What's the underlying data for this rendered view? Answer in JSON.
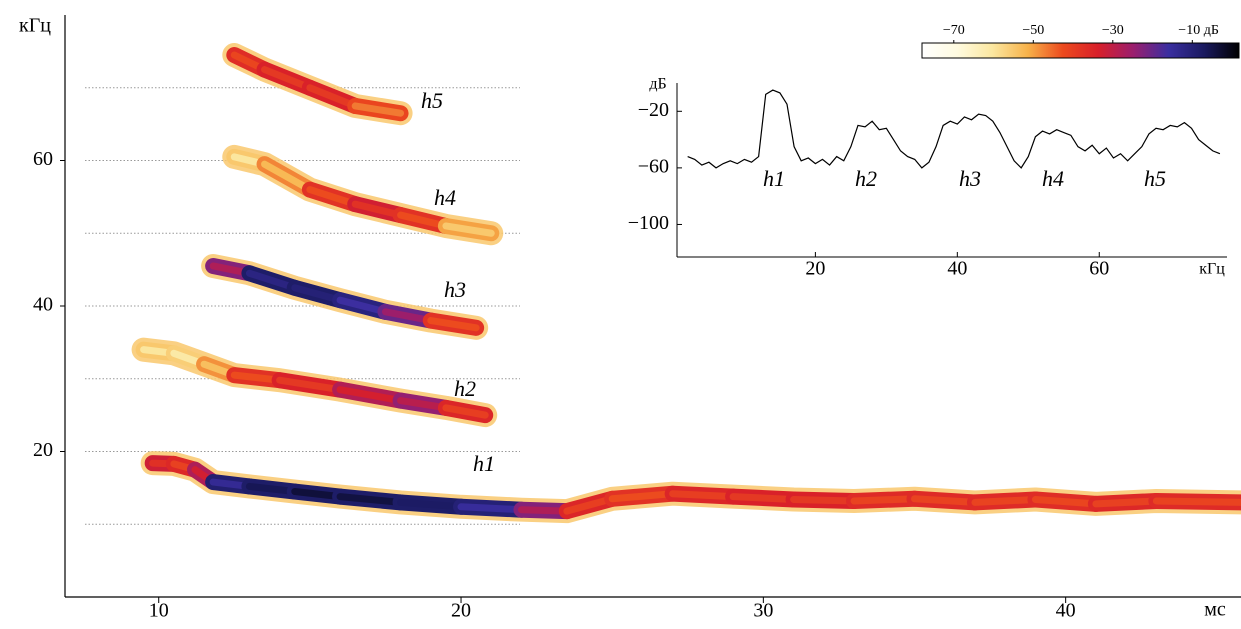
{
  "chart_data": [
    {
      "type": "spectrogram",
      "xlabel": "мс",
      "ylabel": "кГц",
      "xlim": [
        6.9,
        45.8
      ],
      "xticks": [
        10,
        20,
        30,
        40
      ],
      "ylim": [
        0,
        80
      ],
      "yticks": [
        20,
        40,
        60
      ],
      "minor_yticks": [
        10,
        30,
        50,
        70
      ],
      "grid": true,
      "clim": [
        -78,
        2
      ],
      "cticks": [
        {
          "value": -70,
          "label": "−70"
        },
        {
          "value": -50,
          "label": "−50"
        },
        {
          "value": -30,
          "label": "−30"
        },
        {
          "value": -10,
          "label": "−10 дБ"
        }
      ],
      "colormap": [
        "#ffffff",
        "#fffbe0",
        "#fbe7a0",
        "#f7b24a",
        "#ec4a1e",
        "#d81f2a",
        "#9a1e6e",
        "#3a2ea0",
        "#1a1a60",
        "#000000"
      ],
      "series": [
        {
          "name": "h1",
          "x": [
            9.8,
            10.5,
            11.2,
            11.8,
            13,
            14.5,
            16,
            18,
            20,
            22,
            23.5,
            25,
            27,
            29,
            31,
            33,
            35,
            37,
            39,
            41,
            43,
            45.8
          ],
          "values": [
            18.4,
            18.3,
            17.5,
            15.8,
            15.2,
            14.5,
            13.8,
            13.0,
            12.4,
            12.0,
            11.8,
            13.5,
            14.2,
            13.8,
            13.4,
            13.2,
            13.5,
            13.0,
            13.4,
            12.8,
            13.2,
            13.0
          ],
          "db": [
            -38,
            -36,
            -45,
            -20,
            -8,
            -4,
            -3,
            -5,
            -10,
            -20,
            -35,
            -45,
            -40,
            -40,
            -38,
            -40,
            -42,
            -40,
            -42,
            -41,
            -40,
            -42
          ]
        },
        {
          "name": "h2",
          "x": [
            9.5,
            10.5,
            11.5,
            12.5,
            14,
            16,
            18,
            19.5,
            20.8
          ],
          "values": [
            34,
            33.5,
            32,
            30.5,
            29.8,
            28.5,
            27,
            26,
            25
          ],
          "db": [
            -60,
            -60,
            -62,
            -45,
            -40,
            -38,
            -28,
            -30,
            -50
          ]
        },
        {
          "name": "h3",
          "x": [
            11.8,
            13,
            14.5,
            16,
            17.5,
            19,
            20.5
          ],
          "values": [
            45.5,
            44.5,
            42.5,
            40.8,
            39.2,
            38,
            37
          ],
          "db": [
            -40,
            -15,
            -8,
            -12,
            -20,
            -30,
            -55
          ]
        },
        {
          "name": "h4",
          "x": [
            12.5,
            13.5,
            15,
            16.5,
            18,
            19.5,
            21
          ],
          "values": [
            60.5,
            59.5,
            56,
            54,
            52.5,
            51,
            50
          ],
          "db": [
            -60,
            -60,
            -45,
            -40,
            -35,
            -50,
            -60
          ]
        },
        {
          "name": "h5",
          "x": [
            12.5,
            13.5,
            15,
            16.5,
            18
          ],
          "values": [
            74.5,
            72.5,
            70,
            67.5,
            66.5
          ],
          "db": [
            -45,
            -38,
            -40,
            -38,
            -55
          ]
        }
      ]
    },
    {
      "type": "line",
      "ylabel": "дБ",
      "xlabel": "кГц",
      "color": "#000000",
      "xlim": [
        0.5,
        78
      ],
      "xticks": [
        20,
        40,
        60
      ],
      "ylim": [
        -123,
        0
      ],
      "yticks": [
        {
          "value": -20,
          "label": "−20"
        },
        {
          "value": -60,
          "label": "−60"
        },
        {
          "value": -100,
          "label": "−100"
        }
      ],
      "annotations": [
        "h1",
        "h2",
        "h3",
        "h4",
        "h5"
      ],
      "x": [
        2,
        3,
        4,
        5,
        6,
        7,
        8,
        9,
        10,
        11,
        12,
        13,
        14,
        15,
        16,
        17,
        18,
        19,
        20,
        21,
        22,
        23,
        24,
        25,
        26,
        27,
        28,
        29,
        30,
        31,
        32,
        33,
        34,
        35,
        36,
        37,
        38,
        39,
        40,
        41,
        42,
        43,
        44,
        45,
        46,
        47,
        48,
        49,
        50,
        51,
        52,
        53,
        54,
        55,
        56,
        57,
        58,
        59,
        60,
        61,
        62,
        63,
        64,
        65,
        66,
        67,
        68,
        69,
        70,
        71,
        72,
        73,
        74,
        75,
        76,
        77
      ],
      "values": [
        -52,
        -54,
        -58,
        -56,
        -60,
        -57,
        -55,
        -57,
        -54,
        -56,
        -52,
        -8,
        -5,
        -7,
        -15,
        -45,
        -55,
        -53,
        -57,
        -54,
        -58,
        -52,
        -55,
        -45,
        -30,
        -31,
        -27,
        -33,
        -32,
        -40,
        -48,
        -52,
        -54,
        -60,
        -56,
        -45,
        -30,
        -27,
        -29,
        -24,
        -26,
        -22,
        -23,
        -27,
        -35,
        -45,
        -55,
        -60,
        -52,
        -38,
        -34,
        -36,
        -33,
        -35,
        -37,
        -45,
        -48,
        -44,
        -50,
        -46,
        -53,
        -50,
        -55,
        -50,
        -45,
        -36,
        -32,
        -33,
        -30,
        -31,
        -28,
        -32,
        -40,
        -44,
        -48,
        -50
      ]
    }
  ]
}
